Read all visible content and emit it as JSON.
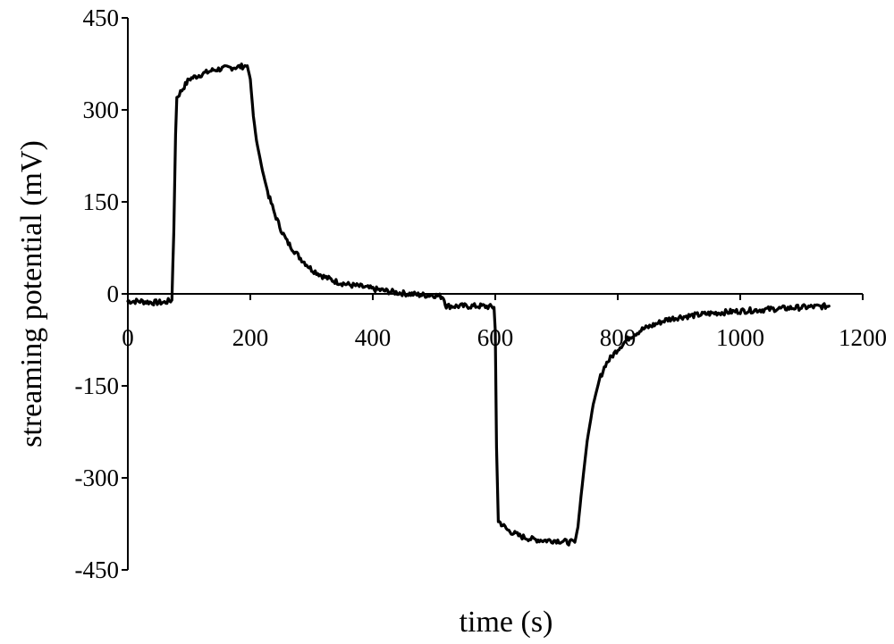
{
  "chart_data": {
    "type": "line",
    "title": "",
    "xlabel": "time (s)",
    "ylabel": "streaming potential (mV)",
    "xlim": [
      0,
      1200
    ],
    "ylim": [
      -450,
      450
    ],
    "x_ticks": [
      0,
      200,
      400,
      600,
      800,
      1000,
      1200
    ],
    "x_tick_labels": [
      "0",
      "200",
      "400",
      "600",
      "800",
      "1000",
      "1200"
    ],
    "y_ticks": [
      450,
      300,
      150,
      0,
      -150,
      -300,
      -450
    ],
    "y_tick_labels": [
      "450",
      "300",
      "150",
      "0",
      "-150",
      "-300",
      "-450"
    ],
    "grid": false,
    "legend": "none",
    "line_color": "#000000",
    "series": [
      {
        "x": [
          0,
          20,
          40,
          60,
          72,
          75,
          78,
          80,
          90,
          100,
          120,
          140,
          160,
          180,
          195,
          200,
          205,
          210,
          220,
          230,
          240,
          250,
          260,
          280,
          300,
          320,
          340,
          360,
          380,
          400,
          420,
          440,
          460,
          480,
          500,
          515,
          520,
          540,
          560,
          580,
          598,
          600,
          602,
          605,
          610,
          620,
          640,
          660,
          680,
          700,
          720,
          730,
          735,
          740,
          750,
          760,
          770,
          780,
          800,
          820,
          840,
          860,
          880,
          900,
          950,
          1000,
          1050,
          1100,
          1145
        ],
        "y": [
          -12,
          -12,
          -14,
          -14,
          -10,
          100,
          260,
          320,
          335,
          350,
          358,
          365,
          368,
          370,
          372,
          350,
          290,
          250,
          200,
          160,
          130,
          105,
          85,
          60,
          40,
          28,
          20,
          15,
          12,
          8,
          5,
          2,
          0,
          -2,
          -2,
          -5,
          -20,
          -20,
          -20,
          -20,
          -22,
          -60,
          -250,
          -370,
          -375,
          -385,
          -395,
          -400,
          -402,
          -402,
          -405,
          -405,
          -380,
          -330,
          -240,
          -180,
          -140,
          -115,
          -90,
          -70,
          -58,
          -50,
          -42,
          -38,
          -32,
          -28,
          -25,
          -22,
          -20
        ]
      }
    ]
  }
}
